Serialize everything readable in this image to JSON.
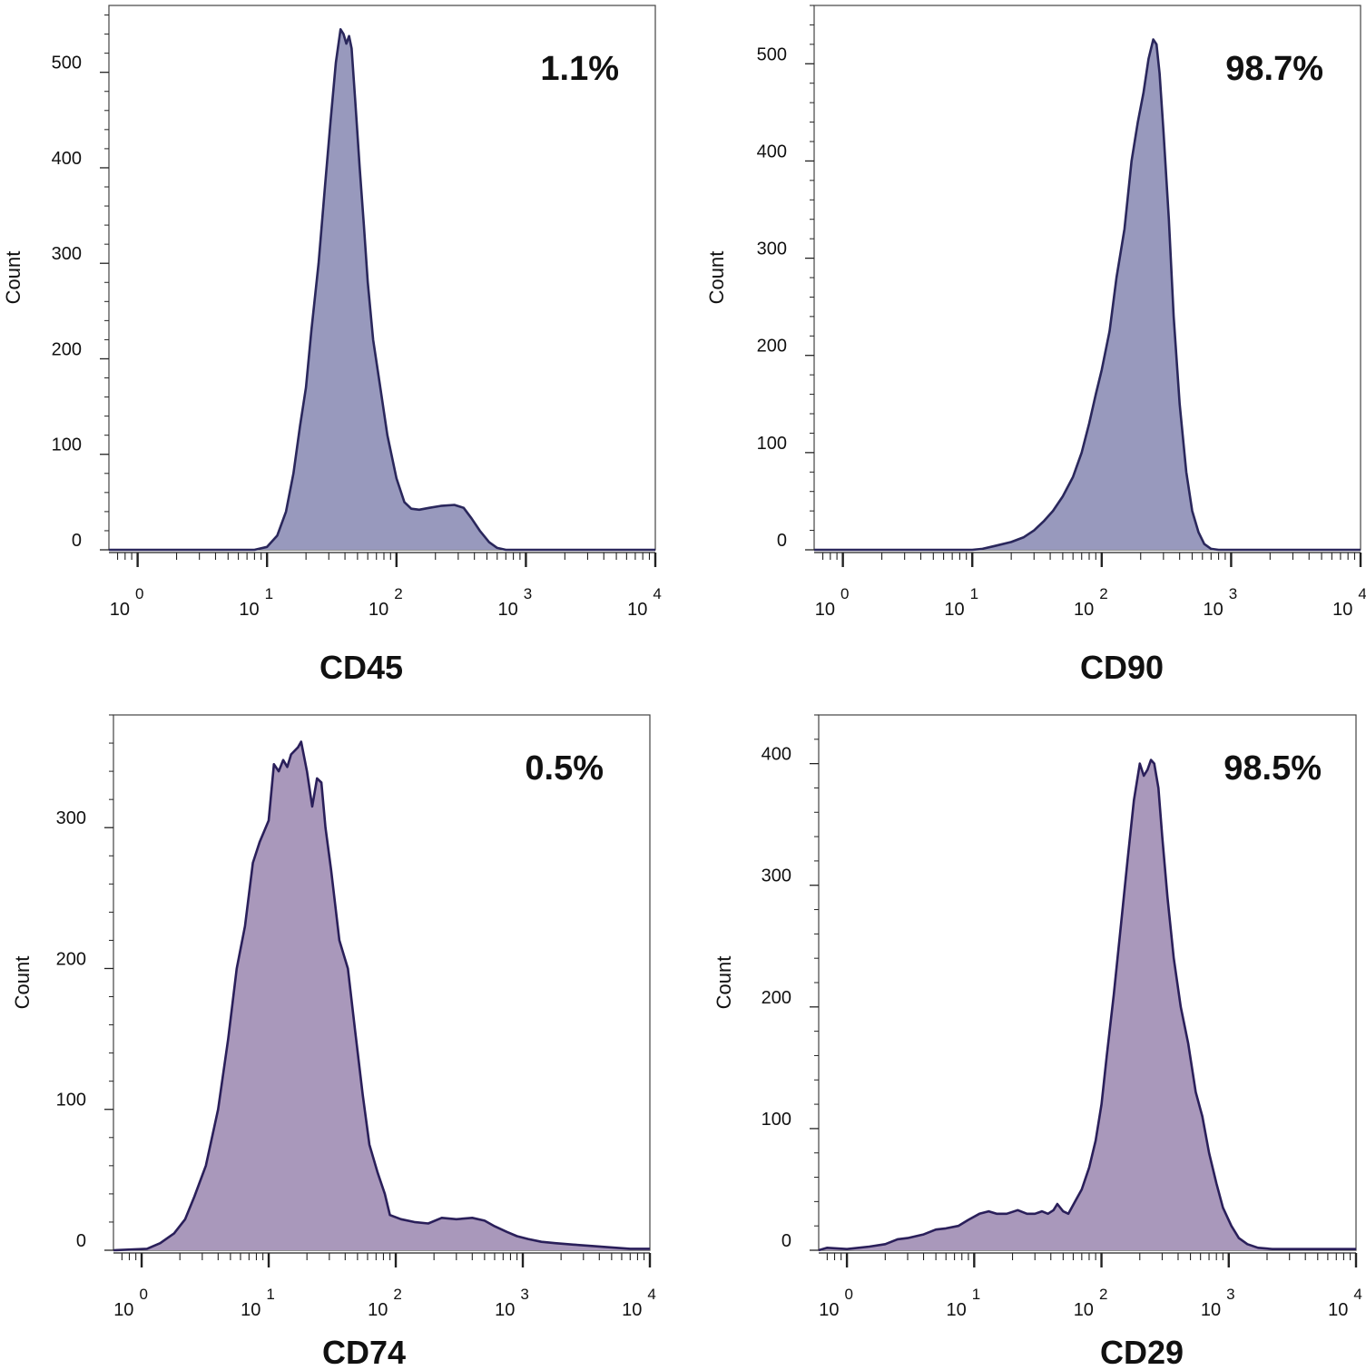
{
  "chart_data": [
    {
      "type": "area",
      "marker": "CD45",
      "xlabel": "CD45",
      "ylabel": "Count",
      "percent_label": "1.1%",
      "x_scale": "log",
      "xlim": [
        0.6,
        10000
      ],
      "ylim": [
        0,
        570
      ],
      "y_ticks": [
        0,
        100,
        200,
        300,
        400,
        500
      ],
      "x_ticks": [
        {
          "base": "10",
          "exp": "0",
          "value": 1
        },
        {
          "base": "10",
          "exp": "1",
          "value": 10
        },
        {
          "base": "10",
          "exp": "2",
          "value": 100
        },
        {
          "base": "10",
          "exp": "3",
          "value": 1000
        },
        {
          "base": "10",
          "exp": "4",
          "value": 10000
        }
      ],
      "fill": "#9899bd",
      "stroke": "#2a275c",
      "points": [
        [
          0.6,
          0
        ],
        [
          8,
          0
        ],
        [
          10,
          3
        ],
        [
          12,
          15
        ],
        [
          14,
          40
        ],
        [
          16,
          80
        ],
        [
          18,
          130
        ],
        [
          20,
          170
        ],
        [
          22,
          230
        ],
        [
          25,
          300
        ],
        [
          28,
          380
        ],
        [
          31,
          450
        ],
        [
          34,
          510
        ],
        [
          37,
          545
        ],
        [
          39,
          540
        ],
        [
          41,
          530
        ],
        [
          43,
          538
        ],
        [
          45,
          525
        ],
        [
          48,
          470
        ],
        [
          52,
          400
        ],
        [
          56,
          340
        ],
        [
          60,
          280
        ],
        [
          66,
          220
        ],
        [
          75,
          170
        ],
        [
          85,
          120
        ],
        [
          100,
          75
        ],
        [
          115,
          50
        ],
        [
          130,
          43
        ],
        [
          150,
          42
        ],
        [
          180,
          44
        ],
        [
          220,
          46
        ],
        [
          280,
          47
        ],
        [
          330,
          44
        ],
        [
          380,
          33
        ],
        [
          440,
          20
        ],
        [
          520,
          8
        ],
        [
          600,
          2
        ],
        [
          700,
          0
        ],
        [
          10000,
          0
        ]
      ]
    },
    {
      "type": "area",
      "marker": "CD90",
      "xlabel": "CD90",
      "ylabel": "Count",
      "percent_label": "98.7%",
      "x_scale": "log",
      "xlim": [
        0.6,
        10000
      ],
      "ylim": [
        0,
        560
      ],
      "y_ticks": [
        0,
        100,
        200,
        300,
        400,
        500
      ],
      "x_ticks": [
        {
          "base": "10",
          "exp": "0",
          "value": 1
        },
        {
          "base": "10",
          "exp": "1",
          "value": 10
        },
        {
          "base": "10",
          "exp": "2",
          "value": 100
        },
        {
          "base": "10",
          "exp": "3",
          "value": 1000
        },
        {
          "base": "10",
          "exp": "4",
          "value": 10000
        }
      ],
      "fill": "#9899bd",
      "stroke": "#2a275c",
      "points": [
        [
          0.6,
          0
        ],
        [
          10,
          0
        ],
        [
          12,
          1
        ],
        [
          15,
          4
        ],
        [
          20,
          8
        ],
        [
          25,
          13
        ],
        [
          30,
          20
        ],
        [
          36,
          30
        ],
        [
          42,
          40
        ],
        [
          50,
          55
        ],
        [
          60,
          75
        ],
        [
          70,
          100
        ],
        [
          80,
          130
        ],
        [
          90,
          160
        ],
        [
          100,
          185
        ],
        [
          115,
          225
        ],
        [
          130,
          280
        ],
        [
          150,
          330
        ],
        [
          170,
          400
        ],
        [
          190,
          440
        ],
        [
          210,
          470
        ],
        [
          230,
          505
        ],
        [
          250,
          525
        ],
        [
          265,
          520
        ],
        [
          280,
          490
        ],
        [
          300,
          430
        ],
        [
          330,
          340
        ],
        [
          360,
          240
        ],
        [
          400,
          150
        ],
        [
          450,
          80
        ],
        [
          500,
          40
        ],
        [
          560,
          18
        ],
        [
          620,
          6
        ],
        [
          700,
          1
        ],
        [
          800,
          0
        ],
        [
          10000,
          0
        ]
      ]
    },
    {
      "type": "area",
      "marker": "CD74",
      "xlabel": "CD74",
      "ylabel": "Count",
      "percent_label": "0.5%",
      "x_scale": "log",
      "xlim": [
        0.6,
        10000
      ],
      "ylim": [
        0,
        380
      ],
      "y_ticks": [
        0,
        100,
        200,
        300
      ],
      "x_ticks": [
        {
          "base": "10",
          "exp": "0",
          "value": 1
        },
        {
          "base": "10",
          "exp": "1",
          "value": 10
        },
        {
          "base": "10",
          "exp": "2",
          "value": 100
        },
        {
          "base": "10",
          "exp": "3",
          "value": 1000
        },
        {
          "base": "10",
          "exp": "4",
          "value": 10000
        }
      ],
      "fill": "#a998bb",
      "stroke": "#2a1f5a",
      "points": [
        [
          0.6,
          0
        ],
        [
          1.1,
          1
        ],
        [
          1.4,
          5
        ],
        [
          1.8,
          12
        ],
        [
          2.2,
          22
        ],
        [
          2.6,
          38
        ],
        [
          3.2,
          60
        ],
        [
          4,
          100
        ],
        [
          4.8,
          150
        ],
        [
          5.6,
          200
        ],
        [
          6.5,
          230
        ],
        [
          7.5,
          275
        ],
        [
          8.5,
          290
        ],
        [
          10,
          305
        ],
        [
          11,
          345
        ],
        [
          12,
          340
        ],
        [
          13,
          348
        ],
        [
          14,
          343
        ],
        [
          15,
          352
        ],
        [
          17,
          357
        ],
        [
          18,
          361
        ],
        [
          20,
          340
        ],
        [
          22,
          315
        ],
        [
          24,
          335
        ],
        [
          26,
          332
        ],
        [
          28,
          300
        ],
        [
          31,
          270
        ],
        [
          36,
          220
        ],
        [
          42,
          200
        ],
        [
          48,
          155
        ],
        [
          55,
          110
        ],
        [
          62,
          75
        ],
        [
          72,
          55
        ],
        [
          82,
          40
        ],
        [
          90,
          25
        ],
        [
          110,
          22
        ],
        [
          140,
          20
        ],
        [
          180,
          19
        ],
        [
          230,
          23
        ],
        [
          300,
          22
        ],
        [
          400,
          23
        ],
        [
          500,
          21
        ],
        [
          600,
          17
        ],
        [
          750,
          13
        ],
        [
          900,
          10
        ],
        [
          1100,
          8
        ],
        [
          1400,
          6
        ],
        [
          1800,
          5
        ],
        [
          2500,
          4
        ],
        [
          3500,
          3
        ],
        [
          5000,
          2
        ],
        [
          7000,
          1
        ],
        [
          10000,
          1
        ]
      ]
    },
    {
      "type": "area",
      "marker": "CD29",
      "xlabel": "CD29",
      "ylabel": "Count",
      "percent_label": "98.5%",
      "x_scale": "log",
      "xlim": [
        0.6,
        10000
      ],
      "ylim": [
        0,
        440
      ],
      "y_ticks": [
        0,
        100,
        200,
        300,
        400
      ],
      "x_ticks": [
        {
          "base": "10",
          "exp": "0",
          "value": 1
        },
        {
          "base": "10",
          "exp": "1",
          "value": 10
        },
        {
          "base": "10",
          "exp": "2",
          "value": 100
        },
        {
          "base": "10",
          "exp": "3",
          "value": 1000
        },
        {
          "base": "10",
          "exp": "4",
          "value": 10000
        }
      ],
      "fill": "#a998bb",
      "stroke": "#2a1f5a",
      "points": [
        [
          0.6,
          0
        ],
        [
          0.7,
          2
        ],
        [
          1,
          1
        ],
        [
          1.5,
          3
        ],
        [
          2,
          5
        ],
        [
          2.5,
          9
        ],
        [
          3,
          10
        ],
        [
          4,
          13
        ],
        [
          5,
          17
        ],
        [
          6,
          18
        ],
        [
          7.5,
          20
        ],
        [
          9,
          25
        ],
        [
          11,
          30
        ],
        [
          13,
          32
        ],
        [
          15,
          30
        ],
        [
          18,
          30
        ],
        [
          22,
          33
        ],
        [
          26,
          30
        ],
        [
          30,
          30
        ],
        [
          34,
          32
        ],
        [
          38,
          30
        ],
        [
          42,
          33
        ],
        [
          45,
          38
        ],
        [
          50,
          32
        ],
        [
          55,
          30
        ],
        [
          62,
          40
        ],
        [
          70,
          50
        ],
        [
          80,
          68
        ],
        [
          90,
          90
        ],
        [
          100,
          120
        ],
        [
          110,
          160
        ],
        [
          125,
          210
        ],
        [
          140,
          260
        ],
        [
          160,
          320
        ],
        [
          180,
          370
        ],
        [
          200,
          400
        ],
        [
          215,
          390
        ],
        [
          230,
          395
        ],
        [
          245,
          403
        ],
        [
          260,
          400
        ],
        [
          280,
          380
        ],
        [
          300,
          340
        ],
        [
          330,
          290
        ],
        [
          370,
          240
        ],
        [
          420,
          200
        ],
        [
          480,
          170
        ],
        [
          550,
          130
        ],
        [
          620,
          110
        ],
        [
          700,
          80
        ],
        [
          800,
          55
        ],
        [
          900,
          35
        ],
        [
          1050,
          20
        ],
        [
          1200,
          10
        ],
        [
          1400,
          5
        ],
        [
          1700,
          2
        ],
        [
          2200,
          1
        ],
        [
          10000,
          1
        ]
      ]
    }
  ]
}
